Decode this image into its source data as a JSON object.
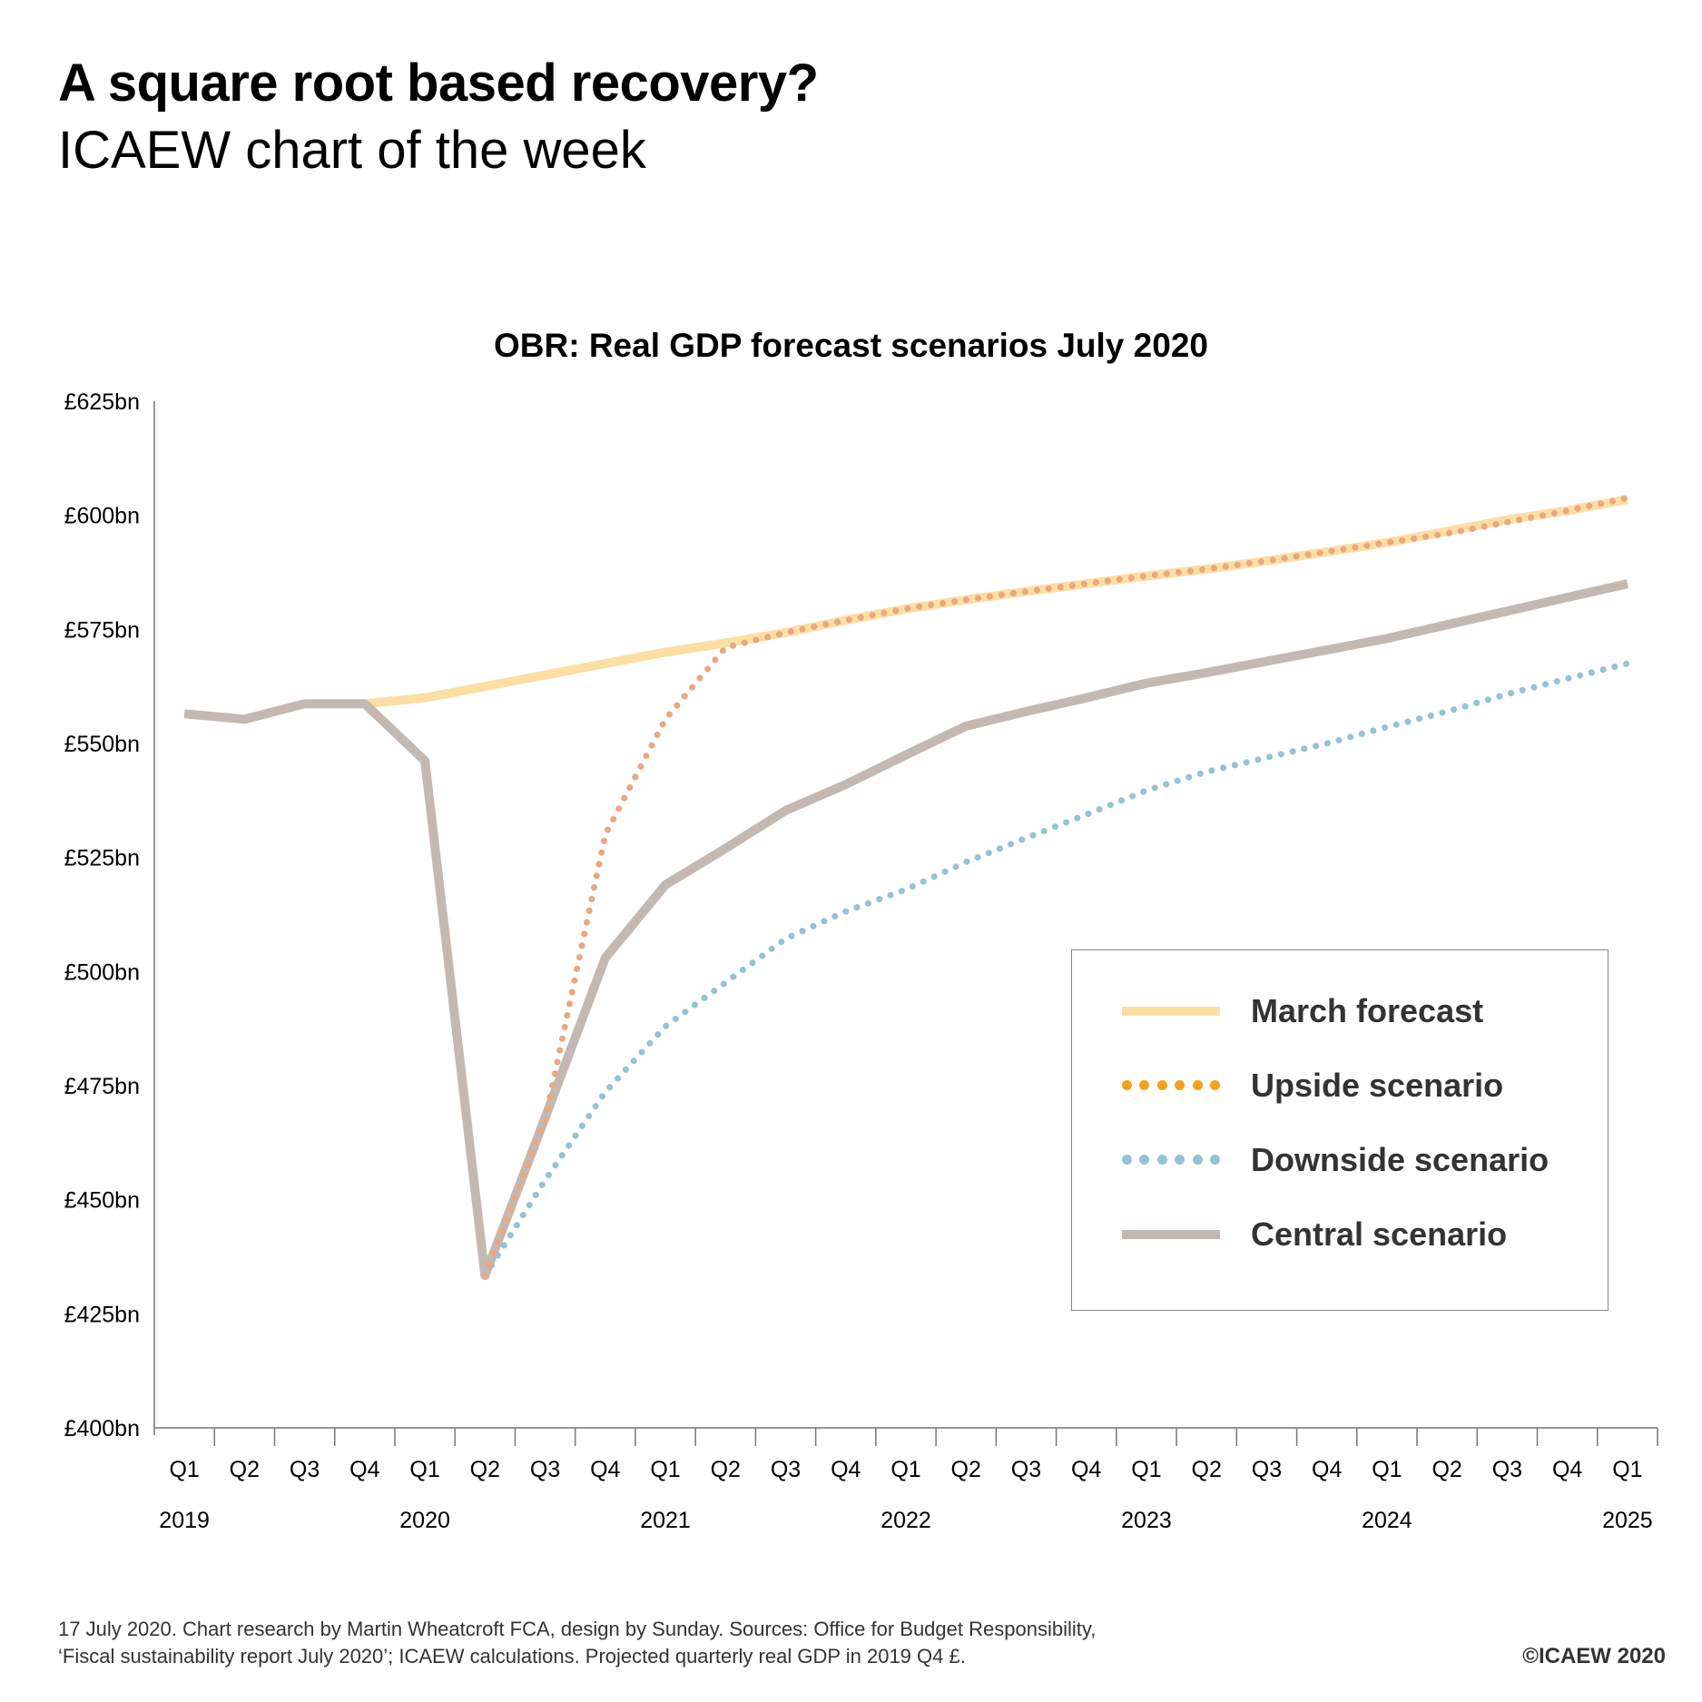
{
  "header": {
    "title": "A square root based recovery?",
    "subtitle": "ICAEW chart of the week"
  },
  "footer": {
    "line1": "17 July 2020.  Chart research by Martin Wheatcroft FCA, design by Sunday.   Sources: Office for Budget Responsibility,",
    "line2": "‘Fiscal sustainability report July 2020’; ICAEW calculations. Projected quarterly real GDP in 2019 Q4 £.",
    "copyright": "©ICAEW 2020"
  },
  "colors": {
    "march": "#FDDFA3",
    "upside": "#E9A782",
    "upside_legend": "#F4A21C",
    "downside": "#95C2D6",
    "central": "#C4B8B3",
    "axis": "#777777"
  },
  "chart_data": {
    "type": "line",
    "title": "OBR: Real GDP forecast scenarios July 2020",
    "xlabel": "",
    "ylabel": "",
    "ylim": [
      400,
      625
    ],
    "yticks": [
      400,
      425,
      450,
      475,
      500,
      525,
      550,
      575,
      600,
      625
    ],
    "ytick_labels": [
      "£400bn",
      "£425bn",
      "£450bn",
      "£475bn",
      "£500bn",
      "£525bn",
      "£550bn",
      "£575bn",
      "£600bn",
      "£625bn"
    ],
    "grid": false,
    "legend_position": "bottom-right",
    "categories": [
      "2019 Q1",
      "2019 Q2",
      "2019 Q3",
      "2019 Q4",
      "2020 Q1",
      "2020 Q2",
      "2020 Q3",
      "2020 Q4",
      "2021 Q1",
      "2021 Q2",
      "2021 Q3",
      "2021 Q4",
      "2022 Q1",
      "2022 Q2",
      "2022 Q3",
      "2022 Q4",
      "2023 Q1",
      "2023 Q2",
      "2023 Q3",
      "2023 Q4",
      "2024 Q1",
      "2024 Q2",
      "2024 Q3",
      "2024 Q4",
      "2025 Q1"
    ],
    "quarter_labels": [
      "Q1",
      "Q2",
      "Q3",
      "Q4",
      "Q1",
      "Q2",
      "Q3",
      "Q4",
      "Q1",
      "Q2",
      "Q3",
      "Q4",
      "Q1",
      "Q2",
      "Q3",
      "Q4",
      "Q1",
      "Q2",
      "Q3",
      "Q4",
      "Q1",
      "Q2",
      "Q3",
      "Q4",
      "Q1"
    ],
    "year_labels": [
      {
        "label": "2019",
        "index": 0
      },
      {
        "label": "2020",
        "index": 4
      },
      {
        "label": "2021",
        "index": 8
      },
      {
        "label": "2022",
        "index": 12
      },
      {
        "label": "2023",
        "index": 16
      },
      {
        "label": "2024",
        "index": 20
      },
      {
        "label": "2025",
        "index": 24
      }
    ],
    "series": [
      {
        "name": "March forecast",
        "key": "march",
        "style": "solid-light",
        "values": [
          null,
          null,
          null,
          558.7,
          560.0,
          562.5,
          565.0,
          567.5,
          570.0,
          572.0,
          574.3,
          577.0,
          579.5,
          581.5,
          583.3,
          585.0,
          586.7,
          588.2,
          590.0,
          592.0,
          594.0,
          596.5,
          599.0,
          601.0,
          603.5
        ]
      },
      {
        "name": "Upside scenario",
        "key": "upside",
        "style": "dotted",
        "values": [
          null,
          null,
          null,
          null,
          null,
          433.4,
          467.5,
          530.0,
          555.3,
          571.0,
          574.3,
          577.0,
          579.5,
          581.5,
          583.3,
          585.0,
          586.7,
          588.2,
          590.0,
          592.0,
          594.0,
          596.0,
          598.5,
          601.0,
          603.8
        ]
      },
      {
        "name": "Downside scenario",
        "key": "downside",
        "style": "dotted",
        "values": [
          null,
          null,
          null,
          null,
          null,
          433.4,
          454.3,
          473.6,
          488.0,
          497.6,
          507.2,
          513.2,
          518.0,
          524.0,
          529.3,
          534.4,
          539.7,
          543.8,
          546.9,
          550.0,
          553.6,
          557.0,
          560.8,
          564.2,
          567.5
        ]
      },
      {
        "name": "Central scenario",
        "key": "central",
        "style": "solid",
        "values": [
          556.5,
          555.3,
          558.7,
          558.7,
          546.2,
          433.4,
          468.0,
          503.0,
          519.0,
          527.0,
          535.3,
          541.0,
          547.5,
          553.8,
          557.0,
          560.0,
          563.2,
          565.5,
          568.0,
          570.5,
          573.0,
          576.0,
          579.0,
          582.0,
          585.0
        ]
      }
    ]
  },
  "legend": {
    "items": [
      {
        "label": "March forecast",
        "key": "march"
      },
      {
        "label": "Upside scenario",
        "key": "upside"
      },
      {
        "label": "Downside scenario",
        "key": "downside"
      },
      {
        "label": "Central scenario",
        "key": "central"
      }
    ]
  }
}
